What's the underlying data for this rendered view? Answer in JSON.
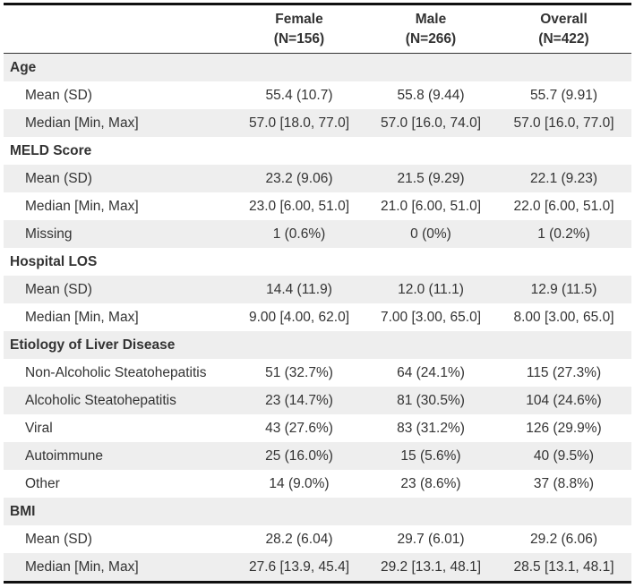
{
  "header": {
    "female_label": "Female",
    "female_n": "(N=156)",
    "male_label": "Male",
    "male_n": "(N=266)",
    "overall_label": "Overall",
    "overall_n": "(N=422)"
  },
  "rows": [
    {
      "type": "section",
      "label": "Age"
    },
    {
      "type": "stat",
      "label": "Mean (SD)",
      "female": "55.4 (10.7)",
      "male": "55.8 (9.44)",
      "overall": "55.7 (9.91)"
    },
    {
      "type": "stat",
      "label": "Median [Min, Max]",
      "female": "57.0 [18.0, 77.0]",
      "male": "57.0 [16.0, 74.0]",
      "overall": "57.0 [16.0, 77.0]"
    },
    {
      "type": "section",
      "label": "MELD Score"
    },
    {
      "type": "stat",
      "label": "Mean (SD)",
      "female": "23.2 (9.06)",
      "male": "21.5 (9.29)",
      "overall": "22.1 (9.23)"
    },
    {
      "type": "stat",
      "label": "Median [Min, Max]",
      "female": "23.0 [6.00, 51.0]",
      "male": "21.0 [6.00, 51.0]",
      "overall": "22.0 [6.00, 51.0]"
    },
    {
      "type": "stat",
      "label": "Missing",
      "female": "1 (0.6%)",
      "male": "0 (0%)",
      "overall": "1 (0.2%)"
    },
    {
      "type": "section",
      "label": "Hospital LOS"
    },
    {
      "type": "stat",
      "label": "Mean (SD)",
      "female": "14.4 (11.9)",
      "male": "12.0 (11.1)",
      "overall": "12.9 (11.5)"
    },
    {
      "type": "stat",
      "label": "Median [Min, Max]",
      "female": "9.00 [4.00, 62.0]",
      "male": "7.00 [3.00, 65.0]",
      "overall": "8.00 [3.00, 65.0]"
    },
    {
      "type": "section",
      "label": "Etiology of Liver Disease"
    },
    {
      "type": "stat",
      "label": "Non-Alcoholic Steatohepatitis",
      "female": "51 (32.7%)",
      "male": "64 (24.1%)",
      "overall": "115 (27.3%)"
    },
    {
      "type": "stat",
      "label": "Alcoholic Steatohepatitis",
      "female": "23 (14.7%)",
      "male": "81 (30.5%)",
      "overall": "104 (24.6%)"
    },
    {
      "type": "stat",
      "label": "Viral",
      "female": "43 (27.6%)",
      "male": "83 (31.2%)",
      "overall": "126 (29.9%)"
    },
    {
      "type": "stat",
      "label": "Autoimmune",
      "female": "25 (16.0%)",
      "male": "15 (5.6%)",
      "overall": "40 (9.5%)"
    },
    {
      "type": "stat",
      "label": "Other",
      "female": "14 (9.0%)",
      "male": "23 (8.6%)",
      "overall": "37 (8.8%)"
    },
    {
      "type": "section",
      "label": "BMI"
    },
    {
      "type": "stat",
      "label": "Mean (SD)",
      "female": "28.2 (6.04)",
      "male": "29.7 (6.01)",
      "overall": "29.2 (6.06)"
    },
    {
      "type": "stat",
      "label": "Median [Min, Max]",
      "female": "27.6 [13.9, 45.4]",
      "male": "29.2 [13.1, 48.1]",
      "overall": "28.5 [13.1, 48.1]"
    }
  ]
}
